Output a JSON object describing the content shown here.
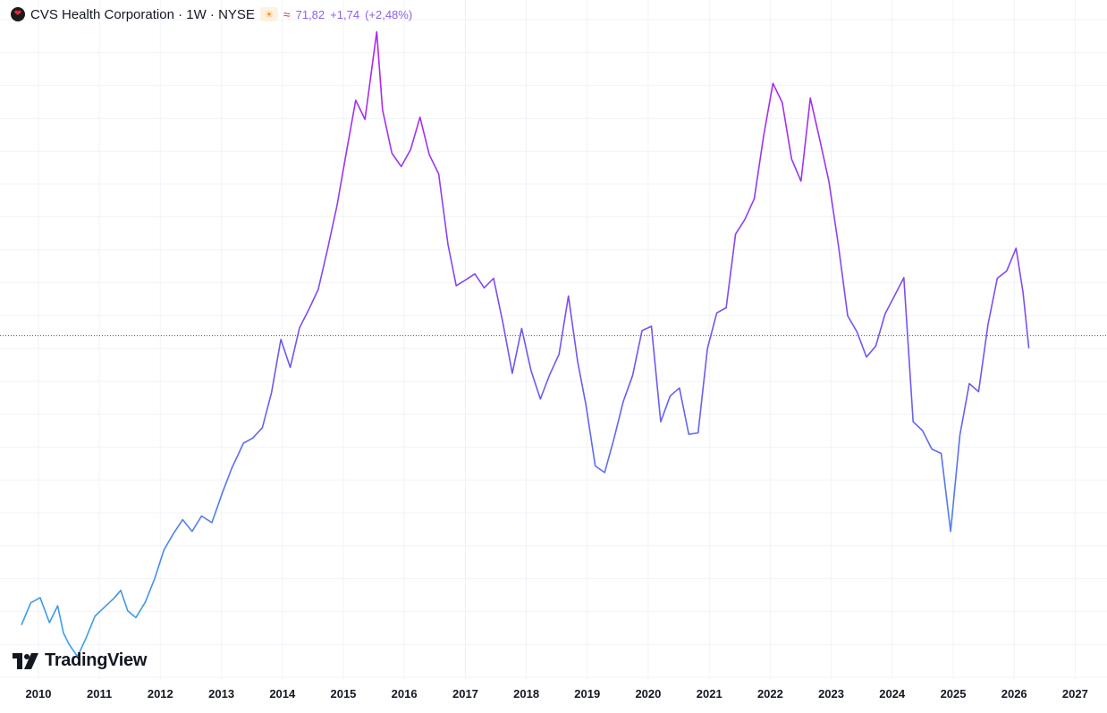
{
  "legend": {
    "symbol": "CVS Health Corporation · 1W · NYSE",
    "price": "71,82",
    "change": "+1,74",
    "change_pct": "(+2,48%)"
  },
  "icons": {
    "symbol_logo": "heart-logo-icon",
    "session": "sun-icon",
    "data_status": "wave-icon"
  },
  "branding": {
    "name": "TradingView"
  },
  "colors": {
    "line_start": "#3aa0e6",
    "line_peak": "#b224f0",
    "line_mid": "#6a5cf0",
    "price_line": "#131722",
    "legend_value": "#8b61e8",
    "background": "#ffffff",
    "grid": "#f0f3fa"
  },
  "chart_data": {
    "type": "line",
    "title": "CVS Health Corporation · 1W · NYSE",
    "xlabel": "",
    "ylabel": "",
    "grid": true,
    "x_ticks": [
      "2010",
      "2011",
      "2012",
      "2013",
      "2014",
      "2015",
      "2016",
      "2017",
      "2018",
      "2019",
      "2020",
      "2021",
      "2022",
      "2023",
      "2024",
      "2025",
      "2026",
      "2027"
    ],
    "current_price": 71.82,
    "ylim": [
      30,
      115
    ],
    "series": [
      {
        "x": [
          "2009-09-21",
          "2009-11-16",
          "2010-01-11",
          "2010-03-08",
          "2010-04-26",
          "2010-05-31",
          "2010-07-05",
          "2010-08-23",
          "2010-10-11",
          "2010-12-06",
          "2011-01-31",
          "2011-03-28",
          "2011-05-09",
          "2011-06-20",
          "2011-08-08",
          "2011-10-03",
          "2011-11-28",
          "2012-01-23",
          "2012-03-19",
          "2012-05-14",
          "2012-07-09",
          "2012-09-04",
          "2012-11-05",
          "2013-01-07",
          "2013-03-04",
          "2013-05-13",
          "2013-07-08",
          "2013-09-03",
          "2013-10-28",
          "2013-12-23",
          "2014-02-17",
          "2014-04-14",
          "2014-06-09",
          "2014-08-04",
          "2014-09-29",
          "2014-11-24",
          "2015-01-19",
          "2015-03-16",
          "2015-05-11",
          "2015-07-20",
          "2015-08-24",
          "2015-10-19",
          "2015-12-14",
          "2016-02-08",
          "2016-04-04",
          "2016-05-30",
          "2016-07-25",
          "2016-09-19",
          "2016-11-07",
          "2017-01-03",
          "2017-02-27",
          "2017-04-24",
          "2017-06-19",
          "2017-08-14",
          "2017-10-09",
          "2017-12-04",
          "2018-01-29",
          "2018-03-26",
          "2018-05-21",
          "2018-07-16",
          "2018-09-10",
          "2018-11-05",
          "2018-12-24",
          "2019-02-18",
          "2019-04-15",
          "2019-06-10",
          "2019-08-05",
          "2019-09-30",
          "2019-11-25",
          "2020-01-20",
          "2020-03-16",
          "2020-05-11",
          "2020-07-06",
          "2020-08-31",
          "2020-10-26",
          "2020-12-21",
          "2021-02-15",
          "2021-04-12",
          "2021-06-07",
          "2021-08-02",
          "2021-09-27",
          "2021-11-22",
          "2022-01-17",
          "2022-03-14",
          "2022-05-09",
          "2022-07-04",
          "2022-08-29",
          "2022-10-24",
          "2022-12-19",
          "2023-02-13",
          "2023-04-10",
          "2023-06-05",
          "2023-07-31",
          "2023-09-25",
          "2023-11-20",
          "2024-01-15",
          "2024-03-11",
          "2024-05-06",
          "2024-07-01",
          "2024-08-26",
          "2024-10-21",
          "2024-12-16",
          "2025-02-10",
          "2025-04-07",
          "2025-06-02",
          "2025-07-28",
          "2025-09-22",
          "2025-11-17",
          "2026-01-12",
          "2026-02-23",
          "2026-03-30"
        ],
        "values": [
          32.5,
          35.5,
          36.2,
          32.8,
          35.1,
          31.4,
          29.8,
          28.2,
          30.6,
          33.7,
          34.9,
          36.1,
          37.2,
          34.4,
          33.5,
          35.6,
          38.8,
          42.7,
          44.9,
          46.8,
          45.2,
          47.3,
          46.4,
          50.5,
          53.8,
          57.2,
          57.9,
          59.3,
          64.1,
          71.3,
          67.5,
          72.9,
          75.4,
          78.1,
          83.6,
          89.5,
          96.7,
          103.8,
          101.2,
          113.1,
          102.5,
          96.6,
          94.8,
          97.1,
          101.5,
          96.4,
          93.8,
          84.2,
          78.6,
          79.4,
          80.2,
          78.3,
          79.6,
          73.5,
          66.7,
          72.8,
          67.1,
          63.2,
          66.5,
          69.3,
          77.2,
          68.2,
          62.4,
          54.1,
          53.2,
          57.8,
          62.9,
          66.4,
          72.5,
          73.1,
          60.1,
          63.6,
          64.7,
          58.4,
          58.6,
          70.1,
          74.9,
          75.6,
          85.6,
          87.6,
          90.4,
          98.9,
          106.1,
          103.5,
          95.8,
          92.8,
          104.1,
          98.5,
          92.7,
          84.1,
          74.5,
          72.3,
          68.9,
          70.4,
          74.8,
          77.2,
          79.7,
          60.1,
          58.9,
          56.4,
          55.8,
          45.2,
          58.3,
          65.3,
          64.2,
          73.3,
          79.6,
          80.6,
          83.7,
          77.7,
          70.1
        ]
      }
    ]
  }
}
